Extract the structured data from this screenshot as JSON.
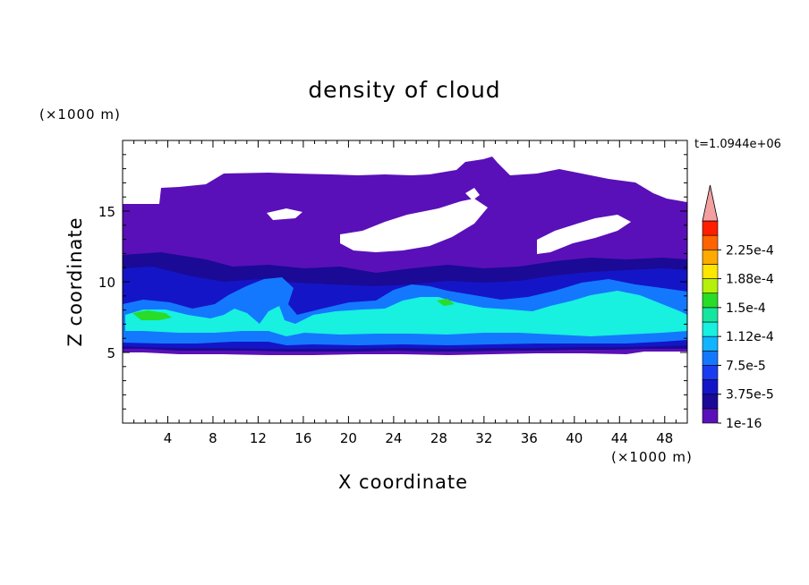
{
  "chart_data": {
    "type": "heatmap",
    "title": "density of cloud",
    "xlabel": "X coordinate",
    "ylabel": "Z coordinate",
    "x_unit": "(×1000 m)",
    "y_unit": "(×1000 m)",
    "time_label": "t=1.0944e+06",
    "xlim": [
      0,
      50
    ],
    "ylim": [
      0,
      20
    ],
    "x_ticks": [
      "4",
      "8",
      "12",
      "16",
      "20",
      "24",
      "28",
      "32",
      "36",
      "40",
      "44",
      "48"
    ],
    "y_ticks": [
      "5",
      "10",
      "15"
    ],
    "colorbar": {
      "labels": [
        "1e-16",
        "3.75e-5",
        "7.5e-5",
        "1.12e-4",
        "1.5e-4",
        "1.88e-4",
        "2.25e-4"
      ],
      "levels": [
        1e-16,
        1.875e-05,
        3.75e-05,
        5.625e-05,
        7.5e-05,
        9.375e-05,
        0.0001125,
        0.00013125,
        0.00015,
        0.00016875,
        0.0001875,
        0.00020625,
        0.000225,
        0.00024375
      ],
      "colors": [
        "#5a10b8",
        "#1a0a96",
        "#1515c8",
        "#1a3cf0",
        "#1478ff",
        "#10b4ff",
        "#18f0e0",
        "#14e6a0",
        "#28dc28",
        "#b4f00a",
        "#ffe600",
        "#ffaa00",
        "#ff6400",
        "#ff1e00"
      ],
      "extend_color": "#f4a0a0"
    },
    "layers": [
      {
        "level": "1e-16",
        "color": "#5a10b8",
        "x": [
          0,
          50
        ],
        "z_bottom": 5.2,
        "z_top_approx": [
          15.3,
          15.3,
          15.3,
          17.2,
          17.2,
          17.5,
          17.5,
          17.0,
          17.0,
          18.0,
          17.5,
          17.3,
          16.5,
          15.5,
          15.5
        ]
      },
      {
        "level": "1.875e-5",
        "color": "#1a0a96",
        "x": [
          0,
          50
        ],
        "z_band": [
          5.6,
          12.5
        ]
      },
      {
        "level": "3.75e-5",
        "color": "#1515c8",
        "x": [
          0,
          50
        ],
        "z_band": [
          5.9,
          11.5
        ]
      },
      {
        "level": "7.5e-5",
        "color": "#1478ff",
        "x": [
          0,
          50
        ],
        "z_band": [
          6.2,
          10.3
        ]
      },
      {
        "level": "1.125e-4",
        "color": "#18f0e0",
        "x": [
          0,
          50
        ],
        "z_band": [
          6.8,
          9.3
        ]
      },
      {
        "level": "1.5e-4",
        "color": "#28dc28",
        "x": [
          1,
          5
        ],
        "z_band": [
          7.5,
          8.2
        ]
      }
    ]
  }
}
